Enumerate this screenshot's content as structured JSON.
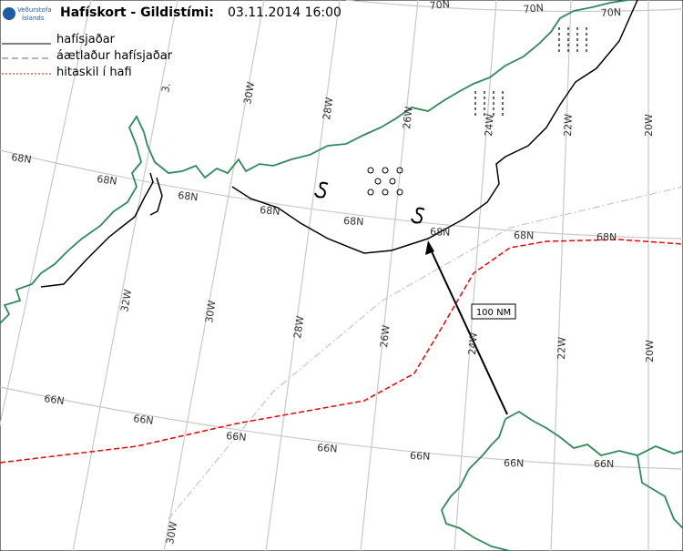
{
  "header": {
    "logo_line1": "Veðurstofa",
    "logo_line2": "Íslands",
    "title": "Hafískort - Gildistími:",
    "datetime": "03.11.2014 16:00"
  },
  "legend": [
    {
      "label": "hafísjaðar"
    },
    {
      "label": "áætlaður hafísjaðar"
    },
    {
      "label": "hitaskil í hafi"
    }
  ],
  "grid_labels": [
    "70N",
    "70N",
    "70N",
    "68N",
    "68N",
    "68N",
    "68N",
    "68N",
    "68N",
    "68N",
    "68N",
    "66N",
    "66N",
    "66N",
    "66N",
    "66N",
    "66N",
    "66N",
    "30W",
    "28W",
    "26W",
    "24W",
    "22W",
    "20W",
    "3.",
    "32W",
    "30W",
    "28W",
    "26W",
    "24W",
    "22W",
    "20W",
    "30W"
  ],
  "distance_label": "100 NM"
}
